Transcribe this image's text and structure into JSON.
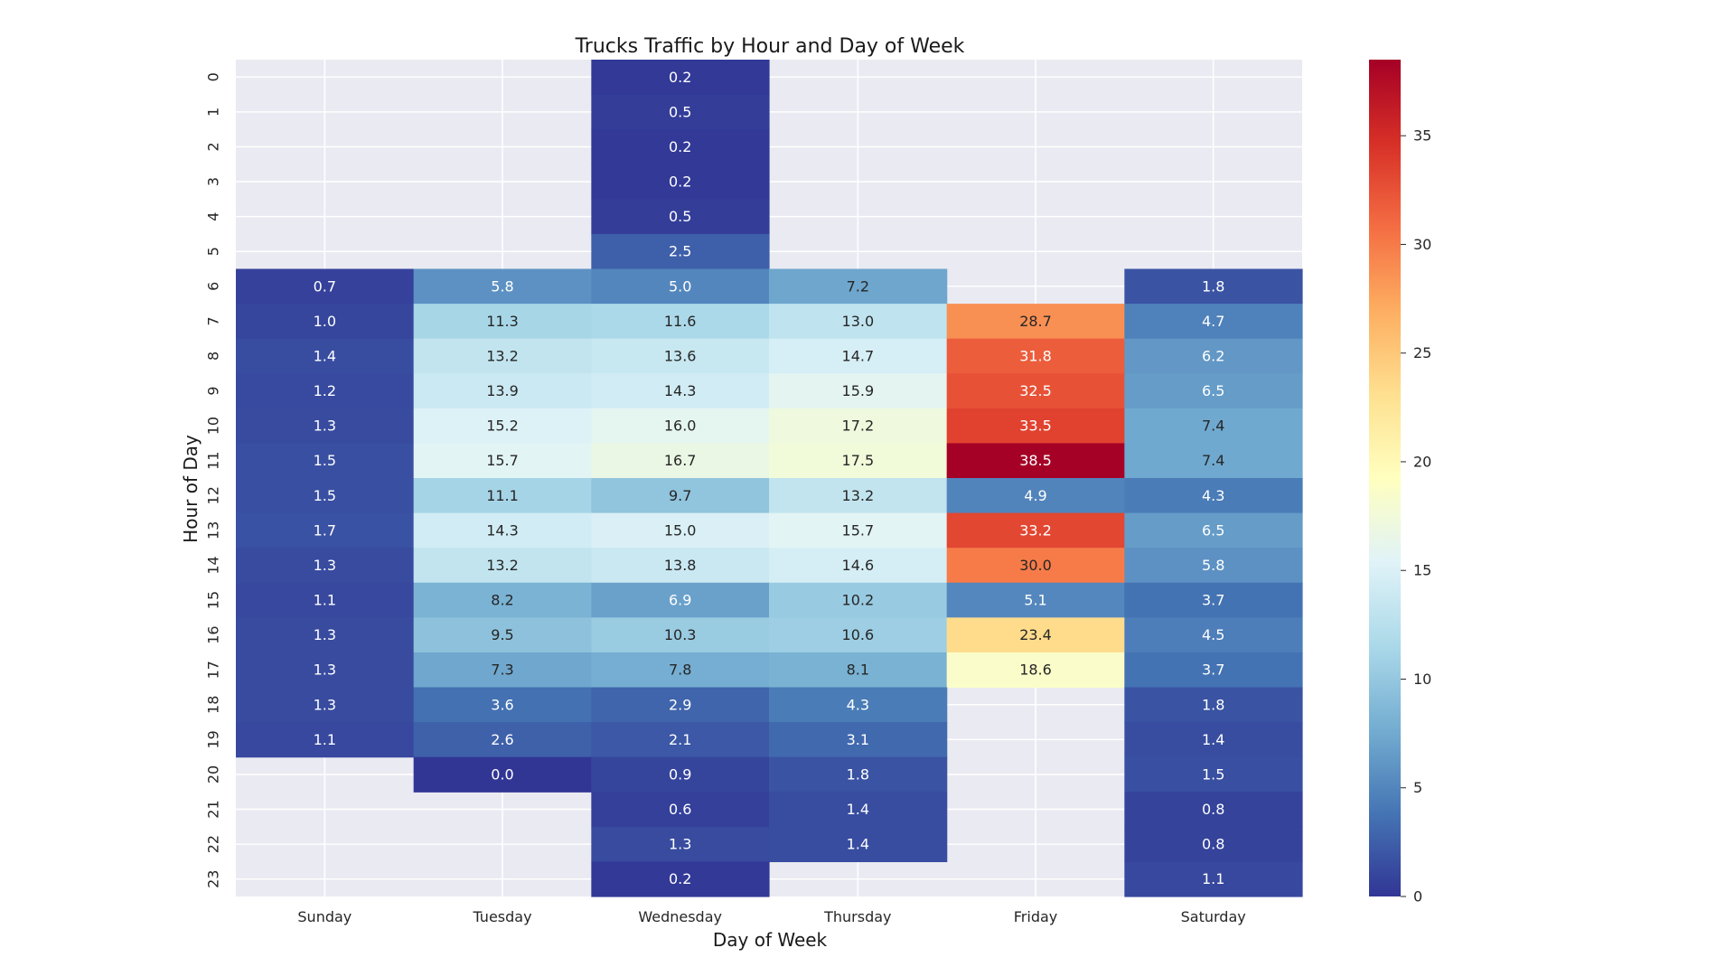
{
  "chart_data": {
    "type": "heatmap",
    "title": "Trucks Traffic by Hour and Day of Week",
    "xlabel": "Day of Week",
    "ylabel": "Hour of Day",
    "columns": [
      "Sunday",
      "Tuesday",
      "Wednesday",
      "Thursday",
      "Friday",
      "Saturday"
    ],
    "rows": [
      "0",
      "1",
      "2",
      "3",
      "4",
      "5",
      "6",
      "7",
      "8",
      "9",
      "10",
      "11",
      "12",
      "13",
      "14",
      "15",
      "16",
      "17",
      "18",
      "19",
      "20",
      "21",
      "22",
      "23"
    ],
    "values": [
      [
        null,
        null,
        0.2,
        null,
        null,
        null
      ],
      [
        null,
        null,
        0.5,
        null,
        null,
        null
      ],
      [
        null,
        null,
        0.2,
        null,
        null,
        null
      ],
      [
        null,
        null,
        0.2,
        null,
        null,
        null
      ],
      [
        null,
        null,
        0.5,
        null,
        null,
        null
      ],
      [
        null,
        null,
        2.5,
        null,
        null,
        null
      ],
      [
        0.7,
        5.8,
        5.0,
        7.2,
        null,
        1.8
      ],
      [
        1.0,
        11.3,
        11.6,
        13.0,
        28.7,
        4.7
      ],
      [
        1.4,
        13.2,
        13.6,
        14.7,
        31.8,
        6.2
      ],
      [
        1.2,
        13.9,
        14.3,
        15.9,
        32.5,
        6.5
      ],
      [
        1.3,
        15.2,
        16.0,
        17.2,
        33.5,
        7.4
      ],
      [
        1.5,
        15.7,
        16.7,
        17.5,
        38.5,
        7.4
      ],
      [
        1.5,
        11.1,
        9.7,
        13.2,
        4.9,
        4.3
      ],
      [
        1.7,
        14.3,
        15.0,
        15.7,
        33.2,
        6.5
      ],
      [
        1.3,
        13.2,
        13.8,
        14.6,
        30.0,
        5.8
      ],
      [
        1.1,
        8.2,
        6.9,
        10.2,
        5.1,
        3.7
      ],
      [
        1.3,
        9.5,
        10.3,
        10.6,
        23.4,
        4.5
      ],
      [
        1.3,
        7.3,
        7.8,
        8.1,
        18.6,
        3.7
      ],
      [
        1.3,
        3.6,
        2.9,
        4.3,
        null,
        1.8
      ],
      [
        1.1,
        2.6,
        2.1,
        3.1,
        null,
        1.4
      ],
      [
        null,
        0.0,
        0.9,
        1.8,
        null,
        1.5
      ],
      [
        null,
        null,
        0.6,
        1.4,
        null,
        0.8
      ],
      [
        null,
        null,
        1.3,
        1.4,
        null,
        0.8
      ],
      [
        null,
        null,
        0.2,
        null,
        null,
        1.1
      ]
    ],
    "value_format": "0.0",
    "colorscale": "RdYlBu_r",
    "vmin": 0,
    "vmax": 38.5,
    "colorbar_ticks": [
      0,
      5,
      10,
      15,
      20,
      25,
      30,
      35
    ],
    "grid": true,
    "missing_color": "#eaeaf2"
  }
}
